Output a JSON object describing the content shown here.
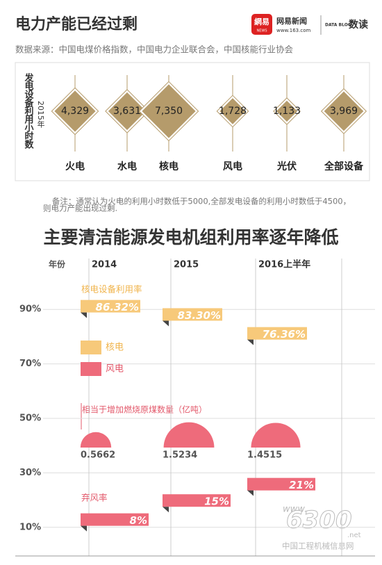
{
  "header": {
    "title": "电力产能已经过剩",
    "logo": "網易",
    "logo_sub": "NEWS",
    "brand": "网易新闻",
    "brand_url": "www.163.com",
    "badge": "DATA BLOG",
    "badge_text": "数读",
    "source": "数据来源：中国电煤价格指数，中国电力企业联合会，中国核能行业协会"
  },
  "hours": {
    "axis_label": "发电设备利用小时数",
    "year": "2015年",
    "categories": [
      "火电",
      "水电",
      "核电",
      "风电",
      "光伏",
      "全部设备"
    ],
    "values": [
      4329,
      3631,
      7350,
      1728,
      1133,
      3969
    ],
    "value_labels": [
      "4,329",
      "3,631",
      "7,350",
      "1,728",
      "1,133",
      "3,969"
    ],
    "color": "#b59b6b"
  },
  "note": [
    "备注：通常认为火电的利用小时数低于5000,全部发电设备的利用小时数低于4500，",
    "则电力产能出现过剩."
  ],
  "chart2": {
    "title": "主要清洁能源发电机组利用率逐年降低",
    "x_label": "年份",
    "categories": [
      "2014",
      "2015",
      "2016上半年"
    ],
    "ylim": [
      0,
      100
    ],
    "yticks": [
      {
        "value": 90,
        "label": "90%"
      },
      {
        "value": 70,
        "label": "70%"
      },
      {
        "value": 50,
        "label": "50%"
      },
      {
        "value": 30,
        "label": "30%"
      },
      {
        "value": 10,
        "label": "10%"
      }
    ],
    "nuclear": {
      "name": "核电设备利用率",
      "legend": "核电",
      "color": "#f7c97a",
      "text_color": "#f0b44c",
      "values": [
        86.32,
        83.3,
        76.36
      ],
      "value_labels": [
        "86.32%",
        "83.30%",
        "76.36%"
      ]
    },
    "wind": {
      "name": "弃风率",
      "legend": "风电",
      "color": "#ee6b7b",
      "text_color": "#e3596b",
      "values": [
        8,
        15,
        21
      ],
      "value_labels": [
        "8%",
        "15%",
        "21%"
      ]
    },
    "coal": {
      "name": "相当于增加燃烧原煤数量（亿吨）",
      "color": "#ee6b7b",
      "values": [
        0.5662,
        1.5234,
        1.4515
      ],
      "value_labels": [
        "0.5662",
        "1.5234",
        "1.4515"
      ]
    }
  },
  "watermark": {
    "prefix": "www.",
    "logo": "6300",
    "suffix": ".net",
    "site": "中国工程机械信息网"
  }
}
